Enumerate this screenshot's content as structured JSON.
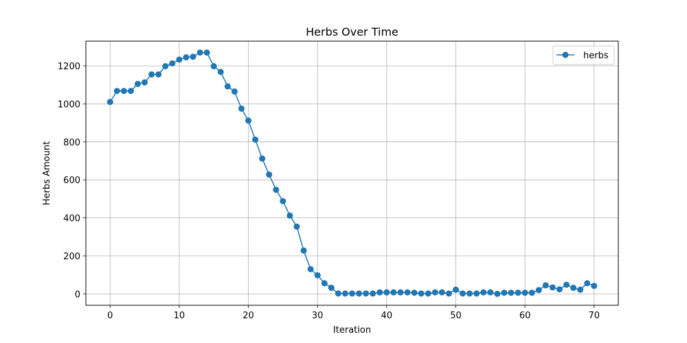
{
  "chart_data": {
    "type": "line",
    "title": "Herbs Over Time",
    "xlabel": "Iteration",
    "ylabel": "Herbs Amount",
    "xlim": [
      -3.5,
      73.5
    ],
    "ylim": [
      -60,
      1330
    ],
    "xticks": [
      0,
      10,
      20,
      30,
      40,
      50,
      60,
      70
    ],
    "yticks": [
      0,
      200,
      400,
      600,
      800,
      1000,
      1200
    ],
    "grid": true,
    "legend_position": "top-right",
    "series": [
      {
        "name": "herbs",
        "color": "#1f77b4",
        "marker": "circle",
        "x": [
          0,
          1,
          2,
          3,
          4,
          5,
          6,
          7,
          8,
          9,
          10,
          11,
          12,
          13,
          14,
          15,
          16,
          17,
          18,
          19,
          20,
          21,
          22,
          23,
          24,
          25,
          26,
          27,
          28,
          29,
          30,
          31,
          32,
          33,
          34,
          35,
          36,
          37,
          38,
          39,
          40,
          41,
          42,
          43,
          44,
          45,
          46,
          47,
          48,
          49,
          50,
          51,
          52,
          53,
          54,
          55,
          56,
          57,
          58,
          59,
          60,
          61,
          62,
          63,
          64,
          65,
          66,
          67,
          68,
          69,
          70
        ],
        "y": [
          1010,
          1068,
          1068,
          1068,
          1105,
          1113,
          1155,
          1155,
          1198,
          1213,
          1233,
          1245,
          1248,
          1270,
          1270,
          1198,
          1168,
          1092,
          1065,
          975,
          912,
          812,
          712,
          628,
          548,
          488,
          412,
          354,
          228,
          130,
          98,
          56,
          32,
          2,
          2,
          2,
          2,
          2,
          2,
          8,
          8,
          8,
          8,
          8,
          6,
          2,
          2,
          8,
          8,
          2,
          22,
          2,
          2,
          2,
          8,
          8,
          0,
          6,
          6,
          6,
          6,
          6,
          20,
          45,
          34,
          24,
          48,
          32,
          22,
          56,
          42
        ]
      }
    ]
  }
}
